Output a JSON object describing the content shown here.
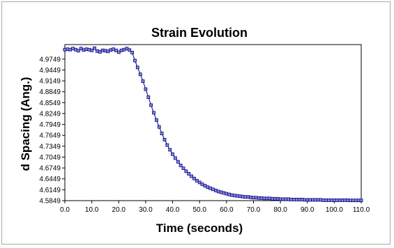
{
  "chart_data": {
    "type": "line",
    "title": "Strain Evolution",
    "xlabel": "Time (seconds)",
    "ylabel": "d Spacing (Ang.)",
    "xlim": [
      0,
      110
    ],
    "ylim": [
      4.5849,
      5.0149
    ],
    "x_ticks": [
      "0.0",
      "10.0",
      "20.0",
      "30.0",
      "40.0",
      "50.0",
      "60.0",
      "70.0",
      "80.0",
      "90.0",
      "100.0",
      "110.0"
    ],
    "y_ticks": [
      "4.5849",
      "4.6149",
      "4.6449",
      "4.6749",
      "4.7049",
      "4.7349",
      "4.7649",
      "4.7949",
      "4.8249",
      "4.8549",
      "4.8849",
      "4.9149",
      "4.9449",
      "4.9749"
    ],
    "grid": false,
    "legend": "none",
    "marker": "square",
    "series": [
      {
        "color": "#000080",
        "marker_fill": "#8a8ad8",
        "x": [
          0,
          1,
          2,
          3,
          4,
          5,
          6,
          7,
          8,
          9,
          10,
          11,
          12,
          13,
          14,
          15,
          16,
          17,
          18,
          19,
          20,
          21,
          22,
          23,
          24,
          25,
          26,
          27,
          28,
          29,
          30,
          31,
          32,
          33,
          34,
          35,
          36,
          37,
          38,
          39,
          40,
          41,
          42,
          43,
          44,
          45,
          46,
          47,
          48,
          49,
          50,
          51,
          52,
          53,
          54,
          55,
          56,
          57,
          58,
          59,
          60,
          61,
          62,
          63,
          64,
          65,
          66,
          67,
          68,
          69,
          70,
          71,
          72,
          73,
          74,
          75,
          76,
          77,
          78,
          79,
          80,
          81,
          82,
          83,
          84,
          85,
          86,
          87,
          88,
          89,
          90,
          91,
          92,
          93,
          94,
          95,
          96,
          97,
          98,
          99,
          100,
          101,
          102,
          103,
          104,
          105,
          106,
          107,
          108,
          109,
          110
        ],
        "y": [
          5.001,
          5.002,
          5.001,
          5.004,
          5.001,
          4.998,
          5.004,
          5.0,
          5.002,
          5.001,
          4.999,
          5.005,
          4.997,
          4.995,
          4.999,
          4.998,
          4.996,
          5.0,
          5.002,
          4.999,
          4.994,
          4.999,
          5.001,
          5.004,
          5.0,
          4.993,
          4.971,
          4.952,
          4.933,
          4.914,
          4.892,
          4.87,
          4.848,
          4.827,
          4.807,
          4.788,
          4.77,
          4.753,
          4.738,
          4.725,
          4.713,
          4.702,
          4.692,
          4.682,
          4.674,
          4.666,
          4.659,
          4.652,
          4.646,
          4.64,
          4.635,
          4.63,
          4.626,
          4.622,
          4.619,
          4.616,
          4.613,
          4.61,
          4.608,
          4.606,
          4.604,
          4.602,
          4.6,
          4.599,
          4.598,
          4.597,
          4.596,
          4.595,
          4.595,
          4.594,
          4.593,
          4.593,
          4.592,
          4.592,
          4.591,
          4.591,
          4.591,
          4.59,
          4.59,
          4.59,
          4.589,
          4.589,
          4.589,
          4.589,
          4.588,
          4.588,
          4.588,
          4.588,
          4.588,
          4.587,
          4.587,
          4.587,
          4.587,
          4.587,
          4.587,
          4.587,
          4.586,
          4.586,
          4.586,
          4.586,
          4.586,
          4.586,
          4.586,
          4.586,
          4.586,
          4.586,
          4.5855,
          4.5855,
          4.5855,
          4.5855,
          4.5855
        ]
      }
    ]
  }
}
